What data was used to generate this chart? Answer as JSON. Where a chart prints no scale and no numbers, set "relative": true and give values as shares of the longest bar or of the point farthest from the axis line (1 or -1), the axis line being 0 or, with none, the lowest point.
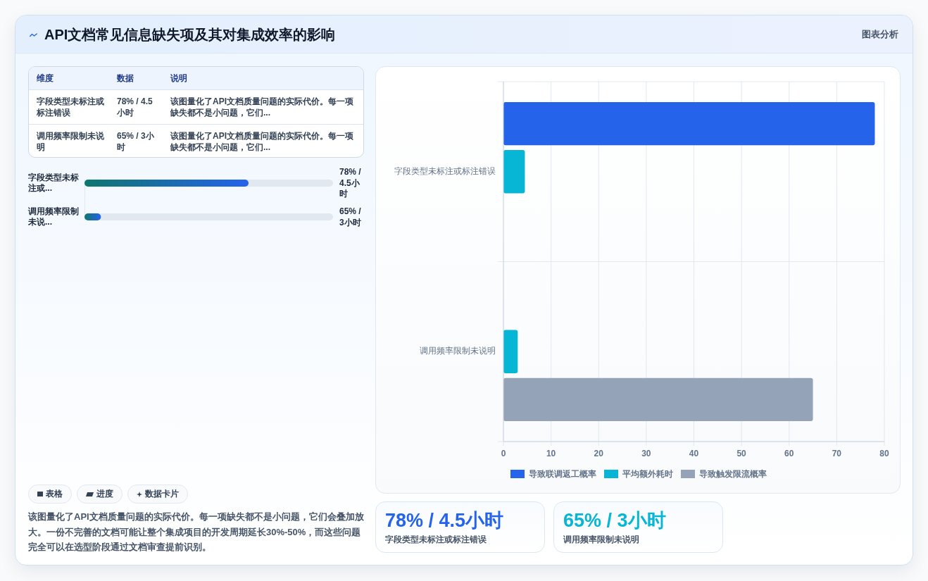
{
  "chart_data": [
    {
      "type": "other",
      "title": "API文档常见信息缺失项及其对集成效率的影响",
      "annotations": [
        "图表分析"
      ]
    },
    {
      "type": "other",
      "categories": [
        "维度",
        "数据",
        "说明"
      ],
      "annotations": [
        "字段类型未标注或标注错误",
        "78% / 4.5小时",
        "该图量化了API文档质量问题的实际代价。每一项缺失都不是小问题，它们...",
        "调用频率限制未说明",
        "65% / 3小时",
        "该图量化了API文档质量问题的实际代价。每一项缺失都不是小问题，它们..."
      ]
    },
    {
      "type": "bar",
      "orientation": "horizontal",
      "relative": true,
      "categories": [
        "字段类型未标注或...",
        "调用频率限制未说..."
      ],
      "y2_categories": [
        "78% / 4.5小时",
        "65% / 3小时"
      ],
      "values": [
        1,
        0.1
      ],
      "color": "#2563eb"
    },
    {
      "type": "other",
      "categories": [
        "表格",
        "进度",
        "数据卡片"
      ],
      "annotations": [
        "该图量化了API文档质量问题的实际代价。每一项缺失都不是小问题，它们会叠加放大。一份不完善的文档可能让整个集成项目的开发周期延长30%-50%，而这些问题完全可以在选型阶段通过文档审查提前识别。"
      ]
    },
    {
      "type": "bar",
      "orientation": "horizontal",
      "categories": [
        "字段类型未标注或标注错误",
        "调用频率限制未说明"
      ],
      "series": [
        {
          "name": "导致联调返工概率",
          "color": "#2563eb",
          "values": [
            78,
            null
          ]
        },
        {
          "name": "平均额外耗时",
          "color": "#06b6d4",
          "values": [
            4.5,
            3
          ]
        },
        {
          "name": "导致触发限流概率",
          "color": "#94a3b8",
          "values": [
            null,
            65
          ]
        }
      ],
      "xlim": [
        0,
        80
      ],
      "xticks": [
        0,
        10,
        20,
        30,
        40,
        50,
        60,
        70,
        80
      ],
      "grid": true,
      "legend": "bottom"
    },
    {
      "type": "other",
      "annotations": [
        "78% / 4.5小时",
        "字段类型未标注或标注错误",
        "65% / 3小时",
        "调用频率限制未说明"
      ],
      "colors": [
        "#2563eb",
        "#06b6d4"
      ]
    }
  ]
}
